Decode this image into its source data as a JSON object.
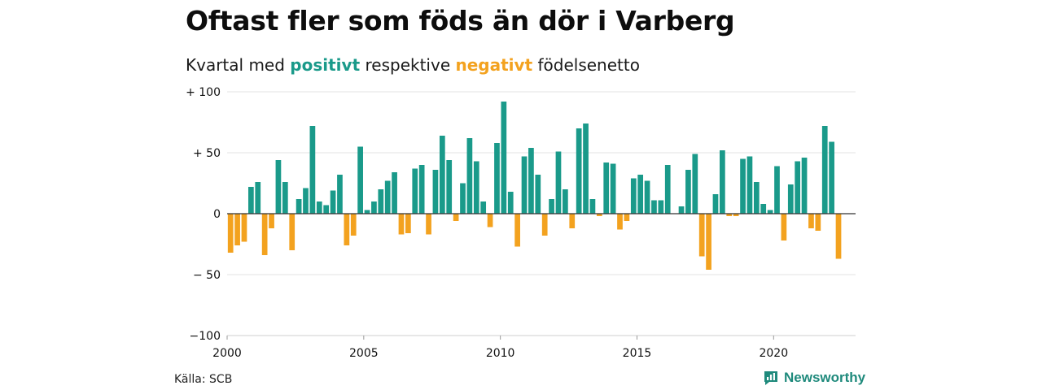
{
  "title": "Oftast fler som föds än dör i Varberg",
  "subtitle": {
    "prefix": "Kvartal med",
    "positive": "positivt",
    "middle": "respektive",
    "negative": "negativt",
    "suffix": "födelsenetto"
  },
  "source": "Källa: SCB",
  "logo_text": "Newsworthy",
  "colors": {
    "positive": "#1a9a8a",
    "negative": "#f3a21f",
    "grid": "#e3e3e3",
    "axis": "#333333"
  },
  "chart_data": {
    "type": "bar",
    "title": "Oftast fler som föds än dör i Varberg",
    "subtitle": "Kvartal med positivt respektive negativt födelsenetto",
    "x_start": 2000,
    "periods_per_year": 4,
    "xlim": [
      2000,
      2023
    ],
    "ylim": [
      -100,
      100
    ],
    "x_ticks": [
      {
        "value": 2000,
        "label": "2000"
      },
      {
        "value": 2005,
        "label": "2005"
      },
      {
        "value": 2010,
        "label": "2010"
      },
      {
        "value": 2015,
        "label": "2015"
      },
      {
        "value": 2020,
        "label": "2020"
      }
    ],
    "y_ticks": [
      {
        "value": 100,
        "label": "+ 100"
      },
      {
        "value": 50,
        "label": "+  50"
      },
      {
        "value": 0,
        "label": "0"
      },
      {
        "value": -50,
        "label": "− 50"
      },
      {
        "value": -100,
        "label": "−100"
      }
    ],
    "grid": true,
    "values": [
      -32,
      -26,
      -23,
      22,
      26,
      -34,
      -12,
      44,
      26,
      -30,
      12,
      21,
      72,
      10,
      7,
      19,
      32,
      -26,
      -18,
      55,
      3,
      10,
      20,
      27,
      34,
      -17,
      -16,
      37,
      40,
      -17,
      36,
      64,
      44,
      -6,
      25,
      62,
      43,
      10,
      -11,
      58,
      92,
      18,
      -27,
      47,
      54,
      32,
      -18,
      12,
      51,
      20,
      -12,
      70,
      74,
      12,
      -2,
      42,
      41,
      -13,
      -6,
      29,
      32,
      27,
      11,
      11,
      40,
      0,
      6,
      36,
      49,
      -35,
      -46,
      16,
      52,
      -2,
      -2,
      45,
      47,
      26,
      8,
      3,
      39,
      -22,
      24,
      43,
      46,
      -12,
      -14,
      72,
      59,
      -37
    ]
  }
}
